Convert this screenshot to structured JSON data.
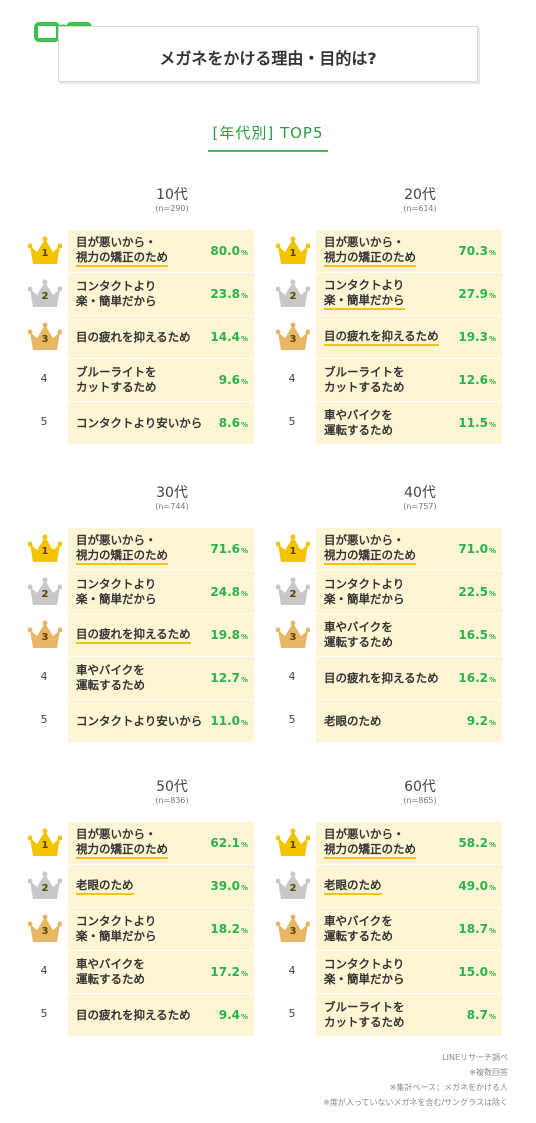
{
  "header": {
    "title": "メガネをかける理由・目的は?",
    "subtitle": "[年代別] TOP5",
    "icon": "glasses-icon",
    "accent": "#3cc14f"
  },
  "colors": {
    "highlight": "#fdf5d4",
    "percent": "#2bb34a",
    "gold": "#f5c400",
    "silver": "#c8c8c8",
    "bronze": "#e8b766",
    "underline": "#f0c419"
  },
  "chart_data": {
    "type": "table",
    "groups": [
      {
        "age": "10代",
        "n": "(n=290)",
        "items": [
          {
            "rank": "1",
            "reason": "目が悪いから・\n視力の矯正のため",
            "value": 80.0,
            "label": "80.0"
          },
          {
            "rank": "2",
            "reason": "コンタクトより\n楽・簡単だから",
            "value": 23.8,
            "label": "23.8"
          },
          {
            "rank": "3",
            "reason": "目の疲れを抑えるため",
            "value": 14.4,
            "label": "14.4"
          },
          {
            "rank": "4",
            "reason": "ブルーライトを\nカットするため",
            "value": 9.6,
            "label": "9.6"
          },
          {
            "rank": "5",
            "reason": "コンタクトより安いから",
            "value": 8.6,
            "label": "8.6"
          }
        ]
      },
      {
        "age": "20代",
        "n": "(n=614)",
        "items": [
          {
            "rank": "1",
            "reason": "目が悪いから・\n視力の矯正のため",
            "value": 70.3,
            "label": "70.3"
          },
          {
            "rank": "2",
            "reason": "コンタクトより\n楽・簡単だから",
            "value": 27.9,
            "label": "27.9"
          },
          {
            "rank": "3",
            "reason": "目の疲れを抑えるため",
            "value": 19.3,
            "label": "19.3"
          },
          {
            "rank": "4",
            "reason": "ブルーライトを\nカットするため",
            "value": 12.6,
            "label": "12.6"
          },
          {
            "rank": "5",
            "reason": "車やバイクを\n運転するため",
            "value": 11.5,
            "label": "11.5"
          }
        ]
      },
      {
        "age": "30代",
        "n": "(n=744)",
        "items": [
          {
            "rank": "1",
            "reason": "目が悪いから・\n視力の矯正のため",
            "value": 71.6,
            "label": "71.6"
          },
          {
            "rank": "2",
            "reason": "コンタクトより\n楽・簡単だから",
            "value": 24.8,
            "label": "24.8"
          },
          {
            "rank": "3",
            "reason": "目の疲れを抑えるため",
            "value": 19.8,
            "label": "19.8"
          },
          {
            "rank": "4",
            "reason": "車やバイクを\n運転するため",
            "value": 12.7,
            "label": "12.7"
          },
          {
            "rank": "5",
            "reason": "コンタクトより安いから",
            "value": 11.0,
            "label": "11.0"
          }
        ]
      },
      {
        "age": "40代",
        "n": "(n=757)",
        "items": [
          {
            "rank": "1",
            "reason": "目が悪いから・\n視力の矯正のため",
            "value": 71.0,
            "label": "71.0"
          },
          {
            "rank": "2",
            "reason": "コンタクトより\n楽・簡単だから",
            "value": 22.5,
            "label": "22.5"
          },
          {
            "rank": "3",
            "reason": "車やバイクを\n運転するため",
            "value": 16.5,
            "label": "16.5"
          },
          {
            "rank": "4",
            "reason": "目の疲れを抑えるため",
            "value": 16.2,
            "label": "16.2"
          },
          {
            "rank": "5",
            "reason": "老眼のため",
            "value": 9.2,
            "label": "9.2"
          }
        ]
      },
      {
        "age": "50代",
        "n": "(n=836)",
        "items": [
          {
            "rank": "1",
            "reason": "目が悪いから・\n視力の矯正のため",
            "value": 62.1,
            "label": "62.1"
          },
          {
            "rank": "2",
            "reason": "老眼のため",
            "value": 39.0,
            "label": "39.0"
          },
          {
            "rank": "3",
            "reason": "コンタクトより\n楽・簡単だから",
            "value": 18.2,
            "label": "18.2"
          },
          {
            "rank": "4",
            "reason": "車やバイクを\n運転するため",
            "value": 17.2,
            "label": "17.2"
          },
          {
            "rank": "5",
            "reason": "目の疲れを抑えるため",
            "value": 9.4,
            "label": "9.4"
          }
        ]
      },
      {
        "age": "60代",
        "n": "(n=865)",
        "items": [
          {
            "rank": "1",
            "reason": "目が悪いから・\n視力の矯正のため",
            "value": 58.2,
            "label": "58.2"
          },
          {
            "rank": "2",
            "reason": "老眼のため",
            "value": 49.0,
            "label": "49.0"
          },
          {
            "rank": "3",
            "reason": "車やバイクを\n運転するため",
            "value": 18.7,
            "label": "18.7"
          },
          {
            "rank": "4",
            "reason": "コンタクトより\n楽・簡単だから",
            "value": 15.0,
            "label": "15.0"
          },
          {
            "rank": "5",
            "reason": "ブルーライトを\nカットするため",
            "value": 8.7,
            "label": "8.7"
          }
        ]
      }
    ],
    "unit": "%"
  },
  "notes": [
    "LINEリサーチ調べ",
    "※複数回答",
    "※集計ベース：メガネをかける人",
    "※度が入っていないメガネを含む/サングラスは除く"
  ]
}
